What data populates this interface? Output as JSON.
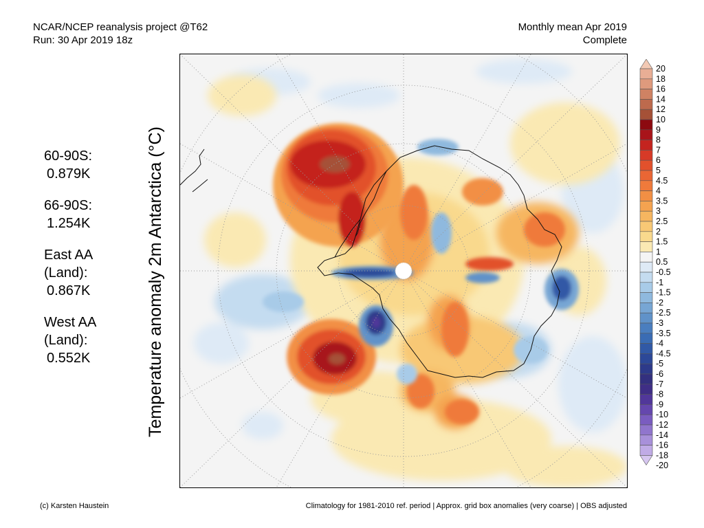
{
  "header": {
    "left_line1": "NCAR/NCEP reanalysis project @T62",
    "left_line2": "Run: 30 Apr 2019 18z",
    "right_line1": "Monthly mean Apr 2019",
    "right_line2": "Complete"
  },
  "axis_label": "Temperature anomaly 2m Antarctica (°C)",
  "stats": [
    {
      "label": "60-90S:",
      "value": "0.879K"
    },
    {
      "label": "66-90S:",
      "value": "1.254K"
    },
    {
      "label": "East AA (Land):",
      "value": "0.867K"
    },
    {
      "label": "West AA (Land):",
      "value": "0.552K"
    }
  ],
  "colorbar": {
    "labels": [
      "20",
      "18",
      "16",
      "14",
      "12",
      "10",
      "9",
      "8",
      "7",
      "6",
      "5",
      "4.5",
      "4",
      "3.5",
      "3",
      "2.5",
      "2",
      "1.5",
      "1",
      "0.5",
      "-0.5",
      "-1",
      "-1.5",
      "-2",
      "-2.5",
      "-3",
      "-3.5",
      "-4",
      "-4.5",
      "-5",
      "-6",
      "-7",
      "-8",
      "-9",
      "-10",
      "-12",
      "-14",
      "-16",
      "-18",
      "-20"
    ],
    "colors": [
      "#f3c9b4",
      "#e9ae95",
      "#df9a7d",
      "#cf8263",
      "#bd6a4d",
      "#a55137",
      "#8c0a10",
      "#a8141a",
      "#c4241f",
      "#d73a27",
      "#e2512c",
      "#ea6634",
      "#ef7a3b",
      "#f28f44",
      "#f4a350",
      "#f6b660",
      "#f8c875",
      "#f9d98d",
      "#fae9b3",
      "#f4f4f4",
      "#deeaf6",
      "#c4dcf0",
      "#a8cbe8",
      "#8fb9de",
      "#77a6d4",
      "#6092c9",
      "#4a7ebf",
      "#3a6cb4",
      "#3159a6",
      "#2c4898",
      "#2d3a8a",
      "#33307f",
      "#3f2e86",
      "#51379a",
      "#6547ae",
      "#7a5cc0",
      "#9075cd",
      "#a890da",
      "#c0abe6",
      "#d6c6f0"
    ]
  },
  "footer": {
    "left": "(c) Karsten Haustein",
    "right": "Climatology for 1981-2010 ref. period | Approx. grid box anomalies (very coarse) | OBS adjusted"
  }
}
